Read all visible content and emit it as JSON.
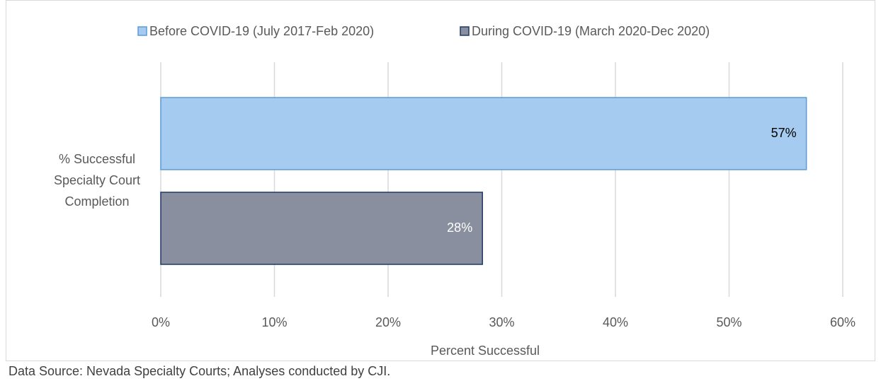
{
  "chart_data": {
    "type": "bar",
    "orientation": "horizontal",
    "categories": [
      "% Successful Specialty Court Completion"
    ],
    "series": [
      {
        "name": "Before COVID-19 (July 2017-Feb 2020)",
        "color": "#a6cbf0",
        "edge_color": "#5b9bd5",
        "label_color": "#000000",
        "values": [
          56.8
        ],
        "value_labels": [
          "57%"
        ]
      },
      {
        "name": "During COVID-19 (March 2020-Dec 2020)",
        "color": "#8a8fa0",
        "edge_color": "#1f3864",
        "label_color": "#ffffff",
        "values": [
          28.3
        ],
        "value_labels": [
          "28%"
        ]
      }
    ],
    "xlim": [
      0,
      60
    ],
    "xticks": [
      {
        "value": 0,
        "label": "0%"
      },
      {
        "value": 10,
        "label": "10%"
      },
      {
        "value": 20,
        "label": "20%"
      },
      {
        "value": 30,
        "label": "30%"
      },
      {
        "value": 40,
        "label": "40%"
      },
      {
        "value": 50,
        "label": "50%"
      },
      {
        "value": 60,
        "label": "60%"
      }
    ],
    "xlabel": "Percent Successful",
    "grid": true,
    "legend": "top",
    "note": "Data Source: Nevada Specialty Courts; Analyses conducted by CJI."
  }
}
